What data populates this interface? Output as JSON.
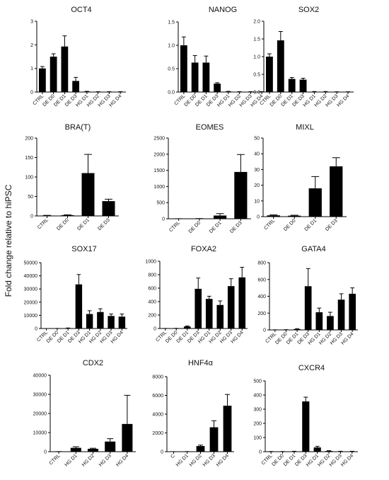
{
  "ylabel": "Fold change relative to hiPSC",
  "chart_data": [
    {
      "type": "bar",
      "title": "OCT4",
      "categories": [
        "CTRL",
        "DE D0",
        "DE D1",
        "DE D3",
        "HG D1",
        "HG D2",
        "HG D3",
        "HG D4"
      ],
      "values": [
        1.0,
        1.5,
        1.93,
        0.47,
        0.02,
        0.01,
        0.01,
        0.01
      ],
      "errors": [
        0.08,
        0.12,
        0.45,
        0.15,
        0.01,
        0.005,
        0.005,
        0.005
      ],
      "ylim": [
        0,
        3
      ],
      "yticks": [
        0,
        1,
        2,
        3
      ],
      "ytick_labels": [
        "0",
        "1",
        "2",
        "3"
      ]
    },
    {
      "type": "bar",
      "title": "NANOG",
      "categories": [
        "CTRL",
        "DE D0",
        "DE D1",
        "DE D3",
        "HG D1",
        "HG D2",
        "HG D3",
        "HG D4"
      ],
      "values": [
        1.0,
        0.63,
        0.63,
        0.18,
        0.01,
        0.005,
        0.005,
        0.005
      ],
      "errors": [
        0.18,
        0.15,
        0.14,
        0.02,
        0.005,
        0.003,
        0.003,
        0.003
      ],
      "ylim": [
        0,
        1.5
      ],
      "yticks": [
        0,
        0.5,
        1,
        1.5
      ],
      "ytick_labels": [
        "0.0",
        "0.5",
        "1.0",
        "1.5"
      ]
    },
    {
      "type": "bar",
      "title": "SOX2",
      "categories": [
        "CTRL",
        "DE D0",
        "DE D1",
        "DE D3",
        "HG D1",
        "HG D2",
        "HG D3",
        "HG D4"
      ],
      "values": [
        1.0,
        1.46,
        0.37,
        0.35,
        0.01,
        0.01,
        0.005,
        0.005
      ],
      "errors": [
        0.08,
        0.25,
        0.04,
        0.04,
        0.005,
        0.005,
        0.003,
        0.003
      ],
      "ylim": [
        0,
        2
      ],
      "yticks": [
        0,
        0.5,
        1,
        1.5,
        2
      ],
      "ytick_labels": [
        "0.0",
        "0.5",
        "1.0",
        "1.5",
        "2.0"
      ]
    },
    {
      "type": "bar",
      "title": "BRA(T)",
      "categories": [
        "CTRL",
        "DE D0",
        "DE D1",
        "DE D3"
      ],
      "values": [
        1,
        2,
        110,
        38
      ],
      "errors": [
        0.5,
        0.8,
        48,
        5
      ],
      "ylim": [
        0,
        200
      ],
      "yticks": [
        0,
        50,
        100,
        150,
        200
      ],
      "ytick_labels": [
        "0",
        "50",
        "100",
        "150",
        "200"
      ]
    },
    {
      "type": "bar",
      "title": "EOMES",
      "categories": [
        "CTRL",
        "DE D0",
        "DE D1",
        "DE D3"
      ],
      "values": [
        2,
        5,
        100,
        1450
      ],
      "errors": [
        1,
        2,
        60,
        540
      ],
      "ylim": [
        0,
        2500
      ],
      "yticks": [
        0,
        500,
        1000,
        1500,
        2000,
        2500
      ],
      "ytick_labels": [
        "0",
        "500",
        "1000",
        "1500",
        "2000",
        "2500"
      ]
    },
    {
      "type": "bar",
      "title": "MIXL",
      "categories": [
        "CTRL",
        "DE D0",
        "DE D1",
        "DE D3"
      ],
      "values": [
        0.8,
        0.6,
        18,
        32
      ],
      "errors": [
        0.3,
        0.3,
        7.5,
        5.5
      ],
      "ylim": [
        0,
        50
      ],
      "yticks": [
        0,
        10,
        20,
        30,
        40,
        50
      ],
      "ytick_labels": [
        "0",
        "10",
        "20",
        "30",
        "40",
        "50"
      ]
    },
    {
      "type": "bar",
      "title": "SOX17",
      "categories": [
        "CTRL",
        "DE D0",
        "DE D1",
        "DE D3",
        "HG D1",
        "HG D2",
        "HG D3",
        "HG D4"
      ],
      "values": [
        0,
        50,
        300,
        33500,
        11000,
        12500,
        9500,
        9000
      ],
      "errors": [
        0,
        20,
        100,
        7500,
        2500,
        2500,
        1500,
        2000
      ],
      "ylim": [
        0,
        50000
      ],
      "yticks": [
        0,
        10000,
        20000,
        30000,
        40000,
        50000
      ],
      "ytick_labels": [
        "0",
        "10000",
        "20000",
        "30000",
        "40000",
        "50000"
      ]
    },
    {
      "type": "bar",
      "title": "FOXA2",
      "categories": [
        "CTRL",
        "DE D0",
        "DE D1",
        "DE D3",
        "HG D1",
        "HG D2",
        "HG D3",
        "HG D4"
      ],
      "values": [
        1,
        2,
        30,
        590,
        440,
        350,
        630,
        760
      ],
      "errors": [
        0.5,
        1,
        8,
        160,
        40,
        60,
        110,
        150
      ],
      "ylim": [
        0,
        1000
      ],
      "yticks": [
        0,
        200,
        400,
        600,
        800,
        1000
      ],
      "ytick_labels": [
        "0",
        "200",
        "400",
        "600",
        "800",
        "1000"
      ]
    },
    {
      "type": "bar",
      "title": "GATA4",
      "categories": [
        "CTRL",
        "DE D0",
        "DE D1",
        "DE D3",
        "HG D1",
        "HG D2",
        "HG D3",
        "HG D4"
      ],
      "values": [
        1,
        2,
        10,
        520,
        210,
        165,
        360,
        430
      ],
      "errors": [
        0.5,
        1,
        5,
        210,
        50,
        45,
        70,
        70
      ],
      "ylim": [
        0,
        800
      ],
      "yticks": [
        0,
        200,
        400,
        600,
        800
      ],
      "ytick_labels": [
        "0",
        "200",
        "400",
        "600",
        "800"
      ]
    },
    {
      "type": "bar",
      "title": "CDX2",
      "categories": [
        "CTRL",
        "HG D1",
        "HG D2",
        "HG D3",
        "HG D4"
      ],
      "values": [
        50,
        2000,
        1500,
        5300,
        14500
      ],
      "errors": [
        20,
        600,
        300,
        1500,
        15000
      ],
      "ylim": [
        0,
        40000
      ],
      "yticks": [
        0,
        10000,
        20000,
        30000,
        40000
      ],
      "ytick_labels": [
        "0",
        "10000",
        "20000",
        "30000",
        "40000"
      ]
    },
    {
      "type": "bar",
      "title": "HNF4α",
      "categories": [
        "C",
        "HG D1",
        "HG D2",
        "HG D3",
        "HG D4"
      ],
      "values": [
        5,
        10,
        600,
        2600,
        4900
      ],
      "errors": [
        2,
        5,
        100,
        700,
        1200
      ],
      "ylim": [
        0,
        8000
      ],
      "yticks": [
        0,
        2000,
        4000,
        6000,
        8000
      ],
      "ytick_labels": [
        "0",
        "2000",
        "4000",
        "6000",
        "8000"
      ]
    },
    {
      "type": "bar",
      "title": "CXCR4",
      "categories": [
        "CTRL",
        "DE D0",
        "DE D1",
        "DE D3",
        "HG D1",
        "HG D2",
        "HG D3",
        "HG D4"
      ],
      "values": [
        1,
        1,
        2,
        355,
        30,
        5,
        2,
        2
      ],
      "errors": [
        0.5,
        0.5,
        1,
        30,
        8,
        2,
        1,
        1
      ],
      "ylim": [
        0,
        500
      ],
      "yticks": [
        0,
        100,
        200,
        300,
        400,
        500
      ],
      "ytick_labels": [
        "0",
        "100",
        "200",
        "300",
        "400",
        "500"
      ]
    }
  ]
}
